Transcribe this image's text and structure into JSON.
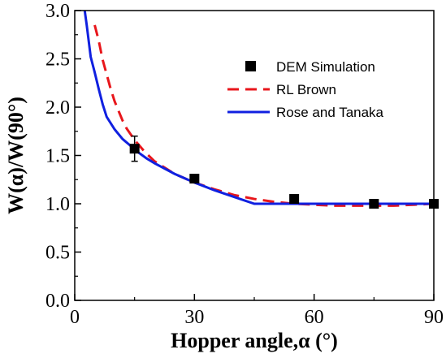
{
  "chart_data": {
    "type": "line",
    "xlabel": "Hopper angle,α (°)",
    "ylabel": "W(α)/W(90°)",
    "xlim": [
      0,
      90
    ],
    "ylim": [
      0,
      3.0
    ],
    "x_ticks": [
      0,
      30,
      60,
      90
    ],
    "y_ticks": [
      0.0,
      0.5,
      1.0,
      1.5,
      2.0,
      2.5,
      3.0
    ],
    "x_tick_labels": [
      "0",
      "30",
      "60",
      "90"
    ],
    "y_tick_labels": [
      "0.0",
      "0.5",
      "1.0",
      "1.5",
      "2.0",
      "2.5",
      "3.0"
    ],
    "grid": false,
    "legend_position": "top-right",
    "series": [
      {
        "name": "DEM Simulation",
        "kind": "scatter",
        "marker": "square",
        "color": "#000000",
        "x": [
          15,
          30,
          55,
          75,
          90
        ],
        "y": [
          1.57,
          1.26,
          1.05,
          1.0,
          1.0
        ],
        "y_err": [
          0.13,
          0.0,
          0.0,
          0.0,
          0.0
        ]
      },
      {
        "name": "RL Brown",
        "kind": "line",
        "dash": "dashed",
        "color": "#e8161b",
        "x": [
          5,
          6,
          7,
          8,
          9,
          10,
          11,
          12,
          13,
          14,
          15,
          17.5,
          20,
          25,
          30,
          35,
          40,
          45,
          50,
          55,
          60,
          65,
          70,
          75,
          80,
          85,
          90
        ],
        "y": [
          2.85,
          2.69,
          2.49,
          2.34,
          2.19,
          2.06,
          1.96,
          1.86,
          1.78,
          1.72,
          1.66,
          1.54,
          1.44,
          1.31,
          1.22,
          1.15,
          1.09,
          1.05,
          1.02,
          1.0,
          0.99,
          0.98,
          0.98,
          0.98,
          0.98,
          0.99,
          1.0
        ]
      },
      {
        "name": "Rose and Tanaka",
        "kind": "line",
        "dash": "solid",
        "color": "#1020e0",
        "x": [
          2.5,
          3,
          4,
          5,
          6,
          7,
          8,
          10,
          12,
          14,
          16,
          18,
          20,
          25,
          30,
          35,
          40,
          45,
          50,
          60,
          70,
          80,
          90
        ],
        "y": [
          3.0,
          2.85,
          2.52,
          2.36,
          2.19,
          2.03,
          1.9,
          1.77,
          1.67,
          1.6,
          1.53,
          1.47,
          1.42,
          1.31,
          1.22,
          1.14,
          1.07,
          1.0,
          1.0,
          1.0,
          1.0,
          1.0,
          1.0
        ]
      }
    ]
  }
}
